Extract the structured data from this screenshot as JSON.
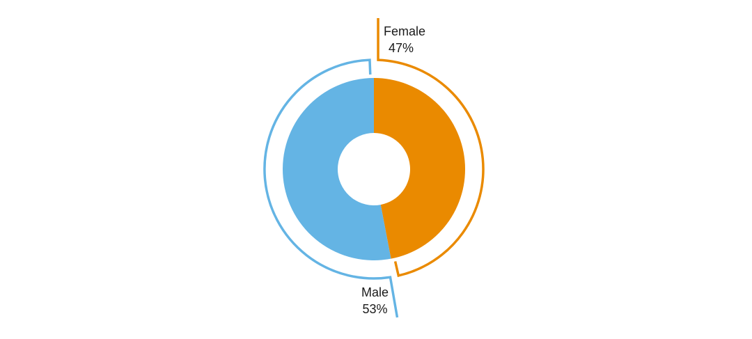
{
  "chart_data": {
    "type": "pie",
    "variant": "donut",
    "title": "",
    "slices": [
      {
        "name": "Female",
        "value": 47,
        "label": "47%",
        "color": "#EA8A00"
      },
      {
        "name": "Male",
        "value": 53,
        "label": "53%",
        "color": "#64B4E4"
      }
    ],
    "legend": "none",
    "labels_placement": "outside with leader outlines"
  }
}
